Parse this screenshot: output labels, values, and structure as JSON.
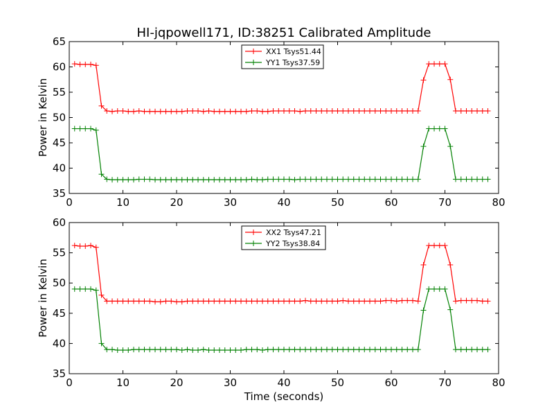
{
  "title": "HI-jqpowell171, ID:38251 Calibrated Amplitude",
  "xlabel": "Time (seconds)",
  "chart_data": [
    {
      "type": "line",
      "ylabel": "Power in Kelvin",
      "xlim": [
        0,
        80
      ],
      "ylim": [
        35,
        65
      ],
      "xticks": [
        0,
        10,
        20,
        30,
        40,
        50,
        60,
        70,
        80
      ],
      "yticks": [
        35,
        40,
        45,
        50,
        55,
        60,
        65
      ],
      "legend_position": "top-center",
      "grid": false,
      "series": [
        {
          "name": "XX1 Tsys51.44",
          "color": "#ff0000",
          "x": [
            1,
            2,
            3,
            4,
            5,
            6,
            7,
            8,
            9,
            10,
            11,
            12,
            13,
            14,
            15,
            16,
            17,
            18,
            19,
            20,
            21,
            22,
            23,
            24,
            25,
            26,
            27,
            28,
            29,
            30,
            31,
            32,
            33,
            34,
            35,
            36,
            37,
            38,
            39,
            40,
            41,
            42,
            43,
            44,
            45,
            46,
            47,
            48,
            49,
            50,
            51,
            52,
            53,
            54,
            55,
            56,
            57,
            58,
            59,
            60,
            61,
            62,
            63,
            64,
            65,
            66,
            67,
            68,
            69,
            70,
            71,
            72,
            73,
            74,
            75,
            76,
            77,
            78
          ],
          "y": [
            60.6,
            60.5,
            60.5,
            60.5,
            60.3,
            52.3,
            51.3,
            51.2,
            51.3,
            51.3,
            51.2,
            51.2,
            51.3,
            51.2,
            51.2,
            51.2,
            51.2,
            51.2,
            51.2,
            51.2,
            51.2,
            51.3,
            51.3,
            51.3,
            51.2,
            51.3,
            51.2,
            51.2,
            51.2,
            51.2,
            51.2,
            51.2,
            51.2,
            51.3,
            51.3,
            51.2,
            51.2,
            51.3,
            51.3,
            51.3,
            51.3,
            51.3,
            51.2,
            51.3,
            51.3,
            51.3,
            51.3,
            51.3,
            51.3,
            51.3,
            51.3,
            51.3,
            51.3,
            51.3,
            51.3,
            51.3,
            51.3,
            51.3,
            51.3,
            51.3,
            51.3,
            51.3,
            51.3,
            51.3,
            51.3,
            57.4,
            60.6,
            60.6,
            60.6,
            60.6,
            57.5,
            51.3,
            51.3,
            51.3,
            51.3,
            51.3,
            51.3,
            51.3
          ]
        },
        {
          "name": "YY1 Tsys37.59",
          "color": "#008000",
          "x": [
            1,
            2,
            3,
            4,
            5,
            6,
            7,
            8,
            9,
            10,
            11,
            12,
            13,
            14,
            15,
            16,
            17,
            18,
            19,
            20,
            21,
            22,
            23,
            24,
            25,
            26,
            27,
            28,
            29,
            30,
            31,
            32,
            33,
            34,
            35,
            36,
            37,
            38,
            39,
            40,
            41,
            42,
            43,
            44,
            45,
            46,
            47,
            48,
            49,
            50,
            51,
            52,
            53,
            54,
            55,
            56,
            57,
            58,
            59,
            60,
            61,
            62,
            63,
            64,
            65,
            66,
            67,
            68,
            69,
            70,
            71,
            72,
            73,
            74,
            75,
            76,
            77,
            78
          ],
          "y": [
            47.8,
            47.8,
            47.8,
            47.8,
            47.5,
            38.8,
            37.8,
            37.7,
            37.7,
            37.7,
            37.7,
            37.7,
            37.8,
            37.8,
            37.8,
            37.7,
            37.7,
            37.7,
            37.7,
            37.7,
            37.7,
            37.7,
            37.7,
            37.7,
            37.7,
            37.7,
            37.7,
            37.7,
            37.7,
            37.7,
            37.7,
            37.7,
            37.7,
            37.8,
            37.7,
            37.7,
            37.8,
            37.8,
            37.8,
            37.8,
            37.8,
            37.7,
            37.8,
            37.8,
            37.8,
            37.8,
            37.8,
            37.8,
            37.8,
            37.8,
            37.8,
            37.8,
            37.8,
            37.8,
            37.8,
            37.8,
            37.8,
            37.8,
            37.8,
            37.8,
            37.8,
            37.8,
            37.8,
            37.8,
            37.8,
            44.3,
            47.8,
            47.8,
            47.8,
            47.8,
            44.3,
            37.8,
            37.8,
            37.8,
            37.8,
            37.8,
            37.8,
            37.8
          ]
        }
      ]
    },
    {
      "type": "line",
      "ylabel": "Power in Kelvin",
      "xlim": [
        0,
        80
      ],
      "ylim": [
        35,
        60
      ],
      "xticks": [
        0,
        10,
        20,
        30,
        40,
        50,
        60,
        70,
        80
      ],
      "yticks": [
        35,
        40,
        45,
        50,
        55,
        60
      ],
      "legend_position": "top-center",
      "grid": false,
      "series": [
        {
          "name": "XX2 Tsys47.21",
          "color": "#ff0000",
          "x": [
            1,
            2,
            3,
            4,
            5,
            6,
            7,
            8,
            9,
            10,
            11,
            12,
            13,
            14,
            15,
            16,
            17,
            18,
            19,
            20,
            21,
            22,
            23,
            24,
            25,
            26,
            27,
            28,
            29,
            30,
            31,
            32,
            33,
            34,
            35,
            36,
            37,
            38,
            39,
            40,
            41,
            42,
            43,
            44,
            45,
            46,
            47,
            48,
            49,
            50,
            51,
            52,
            53,
            54,
            55,
            56,
            57,
            58,
            59,
            60,
            61,
            62,
            63,
            64,
            65,
            66,
            67,
            68,
            69,
            70,
            71,
            72,
            73,
            74,
            75,
            76,
            77,
            78
          ],
          "y": [
            56.2,
            56.1,
            56.1,
            56.2,
            55.9,
            48.0,
            47.0,
            47.0,
            47.0,
            47.0,
            47.0,
            47.0,
            47.0,
            47.0,
            47.0,
            46.9,
            46.9,
            47.0,
            47.0,
            46.9,
            46.9,
            47.0,
            47.0,
            47.0,
            47.0,
            47.0,
            47.0,
            47.0,
            47.0,
            47.0,
            47.0,
            47.0,
            47.0,
            47.0,
            47.0,
            47.0,
            47.0,
            47.0,
            47.0,
            47.0,
            47.0,
            47.0,
            47.0,
            47.1,
            47.0,
            47.0,
            47.0,
            47.0,
            47.0,
            47.0,
            47.1,
            47.0,
            47.0,
            47.0,
            47.0,
            47.0,
            47.0,
            47.0,
            47.1,
            47.1,
            47.0,
            47.1,
            47.1,
            47.1,
            47.0,
            53.0,
            56.2,
            56.2,
            56.2,
            56.2,
            53.0,
            47.0,
            47.1,
            47.1,
            47.1,
            47.1,
            47.0,
            47.0
          ]
        },
        {
          "name": "YY2 Tsys38.84",
          "color": "#008000",
          "x": [
            1,
            2,
            3,
            4,
            5,
            6,
            7,
            8,
            9,
            10,
            11,
            12,
            13,
            14,
            15,
            16,
            17,
            18,
            19,
            20,
            21,
            22,
            23,
            24,
            25,
            26,
            27,
            28,
            29,
            30,
            31,
            32,
            33,
            34,
            35,
            36,
            37,
            38,
            39,
            40,
            41,
            42,
            43,
            44,
            45,
            46,
            47,
            48,
            49,
            50,
            51,
            52,
            53,
            54,
            55,
            56,
            57,
            58,
            59,
            60,
            61,
            62,
            63,
            64,
            65,
            66,
            67,
            68,
            69,
            70,
            71,
            72,
            73,
            74,
            75,
            76,
            77,
            78
          ],
          "y": [
            49.0,
            49.0,
            49.0,
            49.0,
            48.8,
            40.0,
            39.0,
            39.0,
            38.9,
            38.9,
            38.9,
            39.0,
            39.0,
            39.0,
            39.0,
            39.0,
            39.0,
            39.0,
            39.0,
            39.0,
            38.9,
            39.0,
            38.9,
            38.9,
            39.0,
            38.9,
            38.9,
            38.9,
            38.9,
            38.9,
            38.9,
            38.9,
            39.0,
            39.0,
            39.0,
            38.9,
            39.0,
            39.0,
            39.0,
            39.0,
            39.0,
            39.0,
            39.0,
            39.0,
            39.0,
            39.0,
            39.0,
            39.0,
            39.0,
            39.0,
            39.0,
            39.0,
            39.0,
            39.0,
            39.0,
            39.0,
            39.0,
            39.0,
            39.0,
            39.0,
            39.0,
            39.0,
            39.0,
            39.0,
            39.0,
            45.5,
            49.0,
            49.0,
            49.0,
            49.0,
            45.6,
            39.0,
            39.0,
            39.0,
            39.0,
            39.0,
            39.0,
            39.0
          ]
        }
      ]
    }
  ]
}
